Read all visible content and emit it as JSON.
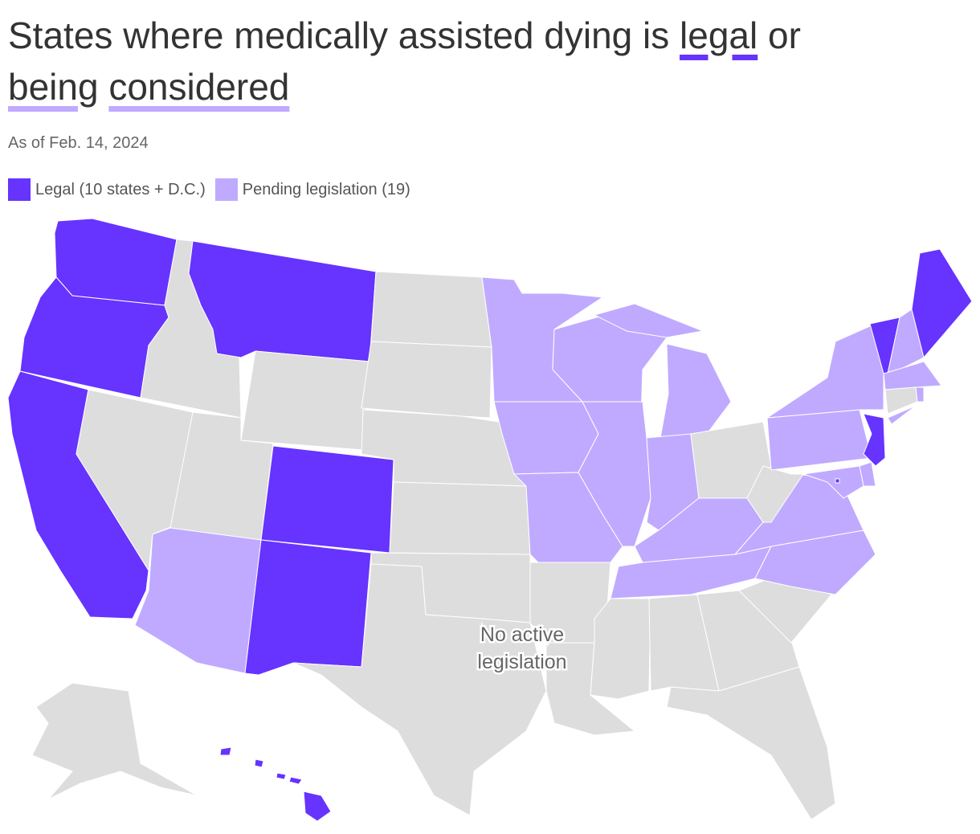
{
  "title": {
    "pre": "States where medically assisted dying is ",
    "w1": "legal",
    "mid": " or ",
    "w2": "being",
    "sp": " ",
    "w3": "considered"
  },
  "subtitle": "As of Feb. 14, 2024",
  "legend": [
    {
      "label": "Legal (10 states + D.C.)",
      "color": "#6633ff"
    },
    {
      "label": "Pending legislation (19)",
      "color": "#c0aaff"
    }
  ],
  "no_data_color": "#dddddd",
  "annotation": {
    "line1": "No active",
    "line2": "legislation"
  },
  "states": {
    "legal": [
      "Washington",
      "Oregon",
      "California",
      "Montana",
      "Colorado",
      "New Mexico",
      "Vermont",
      "Maine",
      "New Jersey",
      "Hawaii",
      "District of Columbia"
    ],
    "pending": [
      "Arizona",
      "Minnesota",
      "Iowa",
      "Missouri",
      "Wisconsin",
      "Illinois",
      "Michigan",
      "Indiana",
      "Kentucky",
      "Tennessee",
      "Virginia",
      "North Carolina",
      "Pennsylvania",
      "New York",
      "New Hampshire",
      "Massachusetts",
      "Rhode Island",
      "Delaware",
      "Maryland"
    ]
  }
}
